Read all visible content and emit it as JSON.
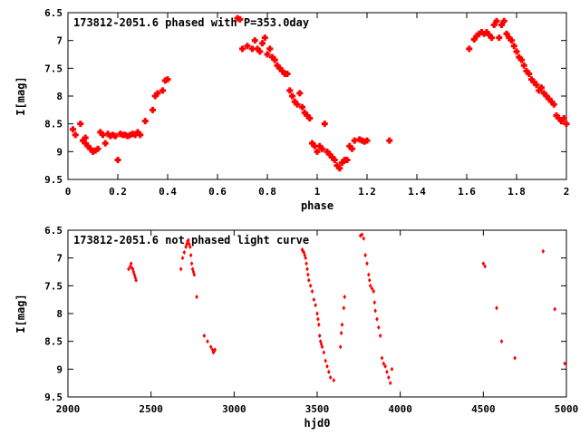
{
  "colors": {
    "marker": "#ff0000",
    "axis": "#000000",
    "background": "#ffffff"
  },
  "chart_data": [
    {
      "type": "scatter",
      "title": "173812-2051.6 phased with P=353.0day",
      "xlabel": "phase",
      "ylabel": "I[mag]",
      "xlim": [
        0,
        2
      ],
      "ylim": [
        9.5,
        6.5
      ],
      "y_inverted": true,
      "x_ticks": [
        0,
        0.2,
        0.4,
        0.6,
        0.8,
        1,
        1.2,
        1.4,
        1.6,
        1.8,
        2
      ],
      "x_tick_labels": [
        "0",
        "0.2",
        "0.4",
        "0.6",
        "0.8",
        "1",
        "1.2",
        "1.4",
        "1.6",
        "1.8",
        "2"
      ],
      "y_ticks": [
        6.5,
        7,
        7.5,
        8,
        8.5,
        9,
        9.5
      ],
      "y_tick_labels": [
        "6.5",
        "7",
        "7.5",
        "8",
        "8.5",
        "9",
        "9.5"
      ],
      "marker": "filled-plus",
      "series": [
        {
          "x": [
            0.02,
            0.03,
            0.05,
            0.06,
            0.07,
            0.07,
            0.08,
            0.09,
            0.1,
            0.11,
            0.12,
            0.13,
            0.14,
            0.15,
            0.16,
            0.17,
            0.18,
            0.19,
            0.2,
            0.21,
            0.22,
            0.23,
            0.24,
            0.25,
            0.26,
            0.27,
            0.28,
            0.29,
            0.31,
            0.34,
            0.35,
            0.36,
            0.38,
            0.39,
            0.4,
            0.68,
            0.69,
            0.7,
            0.72,
            0.74,
            0.75,
            0.76,
            0.77,
            0.78,
            0.79,
            0.8,
            0.81,
            0.82,
            0.83,
            0.84,
            0.85,
            0.86,
            0.87,
            0.88,
            0.89,
            0.9,
            0.91,
            0.92,
            0.93,
            0.94,
            0.95,
            0.96,
            0.97,
            0.98,
            0.99,
            1.0,
            1.01,
            1.02,
            1.03,
            1.04,
            1.05,
            1.06,
            1.07,
            1.08,
            1.09,
            1.1,
            1.11,
            1.12,
            1.13,
            1.14,
            1.15,
            1.17,
            1.18,
            1.19,
            1.2,
            1.29,
            1.61,
            1.63,
            1.64,
            1.65,
            1.66,
            1.67,
            1.68,
            1.69,
            1.7,
            1.71,
            1.72,
            1.73,
            1.74,
            1.75,
            1.76,
            1.77,
            1.78,
            1.79,
            1.8,
            1.81,
            1.82,
            1.83,
            1.84,
            1.85,
            1.86,
            1.87,
            1.88,
            1.89,
            1.9,
            1.91,
            1.92,
            1.93,
            1.94,
            1.95,
            1.96,
            1.97,
            1.98,
            1.99,
            2.0
          ],
          "y": [
            8.6,
            8.7,
            8.5,
            8.8,
            8.85,
            8.75,
            8.9,
            8.95,
            9.0,
            8.98,
            8.95,
            8.65,
            8.7,
            8.85,
            8.68,
            8.72,
            8.7,
            8.72,
            9.15,
            8.68,
            8.7,
            8.7,
            8.72,
            8.7,
            8.68,
            8.7,
            8.65,
            8.7,
            8.45,
            8.25,
            8.0,
            7.95,
            7.9,
            7.72,
            7.7,
            6.6,
            6.62,
            7.15,
            7.1,
            7.15,
            7.0,
            7.15,
            7.2,
            7.05,
            6.95,
            7.25,
            7.15,
            7.3,
            7.35,
            7.45,
            7.5,
            7.55,
            7.6,
            7.6,
            7.9,
            8.0,
            8.1,
            8.15,
            7.95,
            8.2,
            8.3,
            8.35,
            8.4,
            8.85,
            8.9,
            9.0,
            8.9,
            8.95,
            8.5,
            9.0,
            9.05,
            9.1,
            9.15,
            9.25,
            9.3,
            9.2,
            9.15,
            9.15,
            8.9,
            8.95,
            8.8,
            8.78,
            8.8,
            8.82,
            8.8,
            8.8,
            7.15,
            6.98,
            6.92,
            6.88,
            6.85,
            6.88,
            6.85,
            6.9,
            6.95,
            6.72,
            6.65,
            6.95,
            6.72,
            6.65,
            6.88,
            6.95,
            7.0,
            7.1,
            7.2,
            7.3,
            7.35,
            7.45,
            7.55,
            7.6,
            7.7,
            7.75,
            7.8,
            7.9,
            7.85,
            7.95,
            8.0,
            8.05,
            8.1,
            8.15,
            8.35,
            8.4,
            8.45,
            8.4,
            8.5
          ]
        }
      ]
    },
    {
      "type": "scatter",
      "title": "173812-2051.6 not phased light curve",
      "xlabel": "hjd0",
      "ylabel": "I[mag]",
      "xlim": [
        2000,
        5000
      ],
      "ylim": [
        9.5,
        6.5
      ],
      "y_inverted": true,
      "x_ticks": [
        2000,
        2500,
        3000,
        3500,
        4000,
        4500,
        5000
      ],
      "x_tick_labels": [
        "2000",
        "2500",
        "3000",
        "3500",
        "4000",
        "4500",
        "5000"
      ],
      "y_ticks": [
        6.5,
        7,
        7.5,
        8,
        8.5,
        9,
        9.5
      ],
      "y_tick_labels": [
        "6.5",
        "7",
        "7.5",
        "8",
        "8.5",
        "9",
        "9.5"
      ],
      "marker": "filled-diamond",
      "series": [
        {
          "x": [
            2365,
            2375,
            2380,
            2385,
            2390,
            2395,
            2400,
            2405,
            2410,
            2680,
            2690,
            2700,
            2710,
            2715,
            2720,
            2725,
            2730,
            2735,
            2740,
            2745,
            2750,
            2755,
            2760,
            2775,
            2820,
            2840,
            2860,
            2870,
            2875,
            2880,
            2885,
            3410,
            3415,
            3420,
            3425,
            3430,
            3435,
            3440,
            3445,
            3450,
            3460,
            3470,
            3480,
            3490,
            3500,
            3505,
            3510,
            3515,
            3520,
            3525,
            3530,
            3540,
            3550,
            3560,
            3570,
            3580,
            3600,
            3640,
            3645,
            3650,
            3660,
            3665,
            3760,
            3770,
            3780,
            3790,
            3800,
            3810,
            3815,
            3820,
            3830,
            3840,
            3845,
            3850,
            3860,
            3870,
            3880,
            3890,
            3900,
            3910,
            3920,
            3930,
            3940,
            3950,
            4500,
            4510,
            4580,
            4610,
            4690,
            4860,
            4930,
            4990
          ],
          "y": [
            7.2,
            7.15,
            7.1,
            7.18,
            7.2,
            7.25,
            7.3,
            7.35,
            7.4,
            7.2,
            7.0,
            6.9,
            6.8,
            6.75,
            6.7,
            6.68,
            6.75,
            6.8,
            6.95,
            7.1,
            7.2,
            7.25,
            7.3,
            7.7,
            8.4,
            8.5,
            8.6,
            8.65,
            8.7,
            8.68,
            8.65,
            6.85,
            6.88,
            6.9,
            6.95,
            7.0,
            7.1,
            7.2,
            7.3,
            7.4,
            7.5,
            7.6,
            7.75,
            7.85,
            8.0,
            8.1,
            8.2,
            8.4,
            8.5,
            8.55,
            8.6,
            8.7,
            8.85,
            8.95,
            9.05,
            9.15,
            9.2,
            8.6,
            8.35,
            8.2,
            7.9,
            7.7,
            6.6,
            6.58,
            6.65,
            6.95,
            7.1,
            7.3,
            7.4,
            7.5,
            7.55,
            7.6,
            7.8,
            7.95,
            8.1,
            8.25,
            8.4,
            8.8,
            8.9,
            8.95,
            9.05,
            9.15,
            9.25,
            9.0,
            7.1,
            7.15,
            7.9,
            8.5,
            8.8,
            6.88,
            7.92,
            8.9
          ]
        }
      ]
    }
  ]
}
